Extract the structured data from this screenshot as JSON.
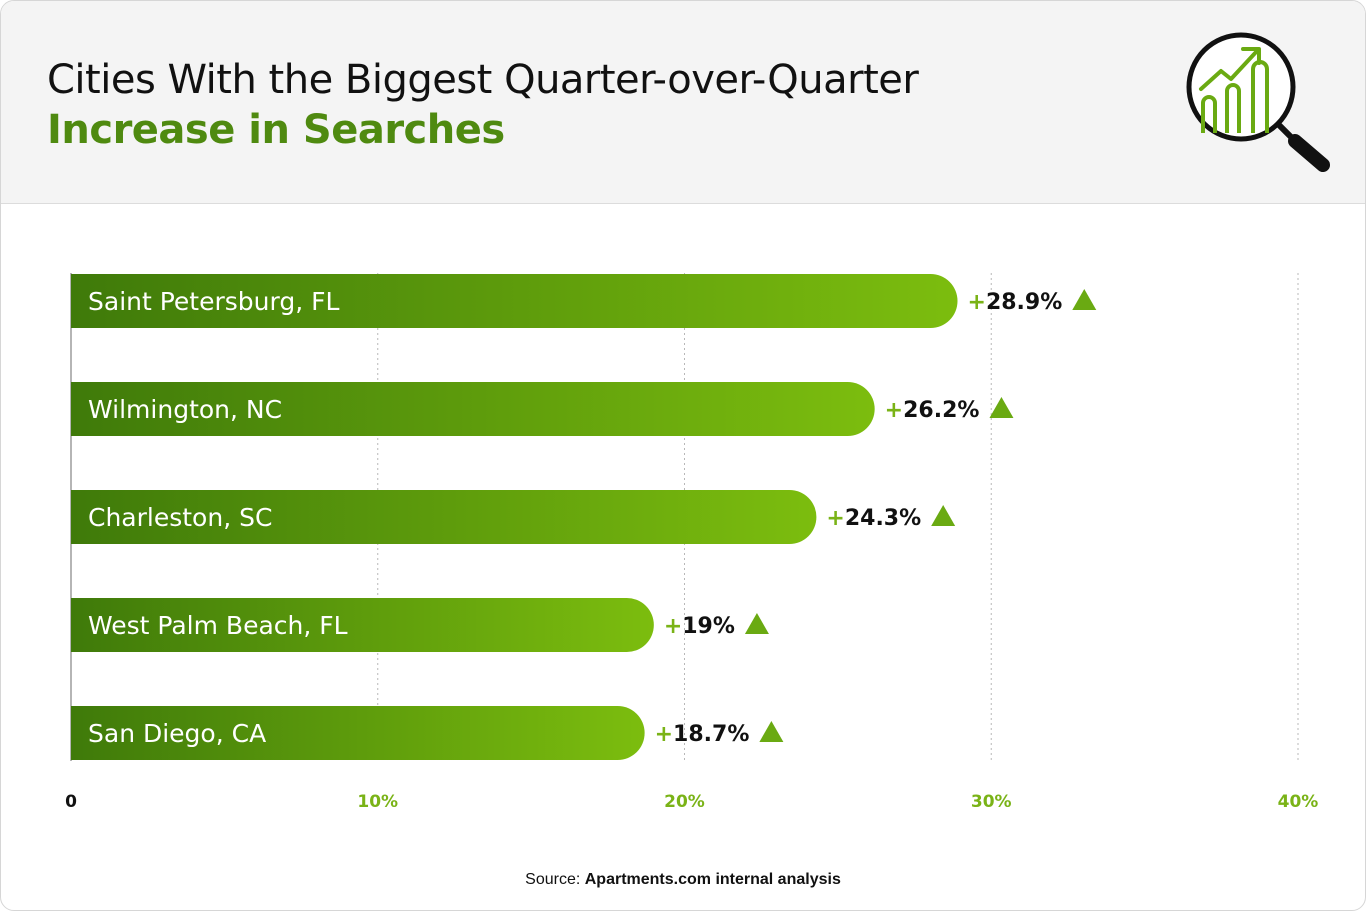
{
  "header": {
    "title_line1": "Cities With the Biggest Quarter-over-Quarter",
    "title_line2": "Increase in Searches",
    "icon": "magnifier-chart-icon"
  },
  "source": {
    "label": "Source:",
    "text": "Apartments.com internal analysis"
  },
  "colors": {
    "accent": "#4f8a10",
    "bar_start": "#3f7a0a",
    "bar_end": "#7cbd0e",
    "tick_accent": "#7ab317",
    "triangle": "#6aaa12"
  },
  "chart_data": {
    "type": "bar",
    "orientation": "horizontal",
    "categories": [
      "Saint Petersburg, FL",
      "Wilmington, NC",
      "Charleston, SC",
      "West Palm Beach, FL",
      "San Diego, CA"
    ],
    "values": [
      28.9,
      26.2,
      24.3,
      19,
      18.7
    ],
    "value_labels": [
      "28.9%",
      "26.2%",
      "24.3%",
      "19%",
      "18.7%"
    ],
    "value_prefix": "+",
    "xlim": [
      0,
      40
    ],
    "ticks": [
      0,
      10,
      20,
      30,
      40
    ],
    "tick_labels": [
      "0",
      "10%",
      "20%",
      "30%",
      "40%"
    ],
    "grid": true,
    "grid_style": "dotted-vertical"
  }
}
